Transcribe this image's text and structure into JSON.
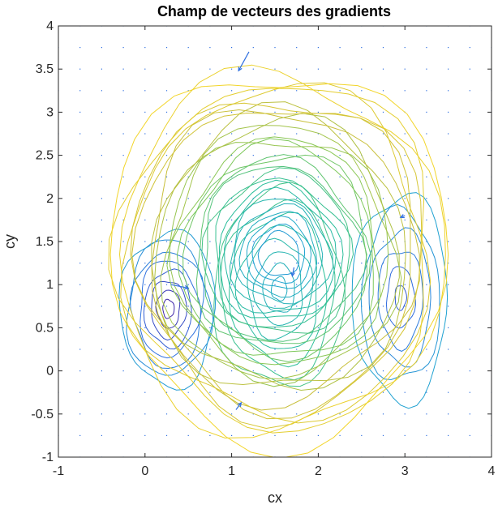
{
  "chart_data": {
    "type": "contour",
    "title": "Champ de vecteurs des gradients",
    "xlabel": "cx",
    "ylabel": "cy",
    "xlim": [
      -1,
      4
    ],
    "ylim": [
      -1,
      4
    ],
    "xticks": [
      "-1",
      "0",
      "1",
      "2",
      "3",
      "4"
    ],
    "yticks": [
      "-1",
      "-0.5",
      "0",
      "0.5",
      "1",
      "1.5",
      "2",
      "2.5",
      "3",
      "3.5",
      "4"
    ],
    "colormap": [
      "#3e26a8",
      "#2f6fe0",
      "#1ea5d0",
      "#2bbf9a",
      "#7fc85a",
      "#c9bf3a",
      "#f2d52a"
    ],
    "grid": false,
    "box": true,
    "contour_groups": [
      {
        "cx": 1.55,
        "cy": 0.95,
        "rx": 0.75,
        "ry": 1.15,
        "levels": 8,
        "level_range": [
          0.38,
          0.55
        ]
      },
      {
        "cx": 0.27,
        "cy": 0.72,
        "rx": 0.55,
        "ry": 0.9,
        "levels": 8,
        "level_range": [
          0.0,
          0.3
        ]
      },
      {
        "cx": 2.95,
        "cy": 0.85,
        "rx": 0.55,
        "ry": 1.2,
        "levels": 6,
        "level_range": [
          0.12,
          0.32
        ]
      },
      {
        "cx": 1.55,
        "cy": 1.35,
        "rx": 1.95,
        "ry": 2.15,
        "levels": 26,
        "level_range": [
          0.3,
          1.0
        ]
      }
    ],
    "arrows": [
      {
        "x": 1.2,
        "y": 3.7,
        "u": -0.12,
        "v": -0.22
      },
      {
        "x": 0.3,
        "y": 1.0,
        "u": 0.2,
        "v": -0.04
      },
      {
        "x": 1.72,
        "y": 1.2,
        "u": -0.02,
        "v": -0.1
      },
      {
        "x": 3.0,
        "y": 1.8,
        "u": -0.05,
        "v": -0.02
      },
      {
        "x": 1.05,
        "y": -0.45,
        "u": 0.06,
        "v": 0.08
      }
    ],
    "quiver_grid": {
      "x_start": -1,
      "x_step": 0.25,
      "y_start": -1,
      "y_step": 0.25
    }
  }
}
